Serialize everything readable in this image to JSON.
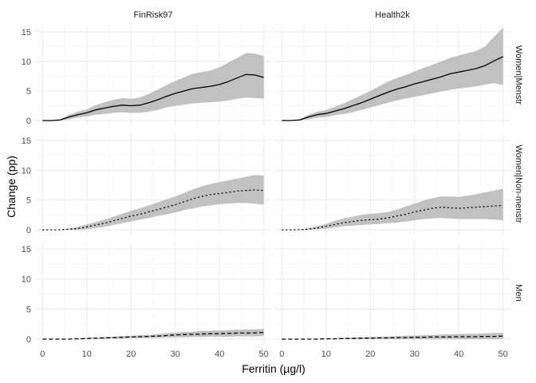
{
  "chart_data": {
    "type": "line",
    "xlabel": "Ferritin (µg/l)",
    "ylabel": "Change (pp)",
    "xlim": [
      -1.5,
      51.5
    ],
    "ylim": [
      -0.8,
      16.2
    ],
    "x_ticks": [
      0,
      10,
      20,
      30,
      40,
      50
    ],
    "x_tick_labels": [
      "0",
      "10",
      "20",
      "30",
      "40",
      "50"
    ],
    "y_ticks": [
      0,
      5,
      10,
      15
    ],
    "y_tick_labels": [
      "0",
      "5",
      "10",
      "15"
    ],
    "columns": [
      "FinRisk97",
      "Health2k"
    ],
    "rows": [
      "Women|Menstr",
      "Women|Non-menstr",
      "Men"
    ],
    "grid": true,
    "legend": "none",
    "band_color": "#bebebe",
    "line_color": "#000000",
    "x": [
      0,
      2,
      4,
      6,
      8,
      10,
      12,
      14,
      16,
      18,
      20,
      22,
      24,
      26,
      28,
      30,
      32,
      34,
      36,
      38,
      40,
      42,
      44,
      46,
      48,
      50
    ],
    "panels": [
      {
        "row": "Women|Menstr",
        "column": "FinRisk97",
        "line_style": "solid",
        "values": [
          0,
          0,
          0.1,
          0.6,
          1.0,
          1.3,
          1.8,
          2.1,
          2.4,
          2.6,
          2.5,
          2.6,
          3.0,
          3.5,
          4.1,
          4.6,
          5.0,
          5.4,
          5.6,
          5.8,
          6.1,
          6.6,
          7.2,
          7.8,
          7.7,
          7.3
        ],
        "lower": [
          0,
          0,
          0,
          0.2,
          0.5,
          0.7,
          1.0,
          1.1,
          1.3,
          1.4,
          1.3,
          1.3,
          1.5,
          1.8,
          2.2,
          2.5,
          2.7,
          2.9,
          3.0,
          3.1,
          3.2,
          3.4,
          3.7,
          3.9,
          3.8,
          3.7
        ],
        "upper": [
          0,
          0,
          0.2,
          1.0,
          1.5,
          1.9,
          2.6,
          3.1,
          3.5,
          3.8,
          3.7,
          3.9,
          4.5,
          5.2,
          6.0,
          6.7,
          7.3,
          7.9,
          8.2,
          8.5,
          9.0,
          9.8,
          10.6,
          11.4,
          11.3,
          10.9
        ]
      },
      {
        "row": "Women|Menstr",
        "column": "Health2k",
        "line_style": "solid",
        "values": [
          0,
          0,
          0.1,
          0.6,
          1.0,
          1.2,
          1.6,
          2.0,
          2.5,
          3.0,
          3.6,
          4.2,
          4.8,
          5.3,
          5.7,
          6.2,
          6.6,
          7.0,
          7.4,
          7.9,
          8.2,
          8.5,
          8.8,
          9.3,
          10.1,
          10.8
        ],
        "lower": [
          0,
          0,
          0,
          0.2,
          0.5,
          0.6,
          0.9,
          1.1,
          1.4,
          1.8,
          2.2,
          2.6,
          3.0,
          3.4,
          3.7,
          4.0,
          4.3,
          4.6,
          4.9,
          5.2,
          5.4,
          5.6,
          5.8,
          6.1,
          6.3,
          6.0
        ],
        "upper": [
          0,
          0,
          0.2,
          1.0,
          1.5,
          1.8,
          2.3,
          2.9,
          3.6,
          4.3,
          5.0,
          5.8,
          6.6,
          7.2,
          7.7,
          8.3,
          8.9,
          9.4,
          10.0,
          10.6,
          11.0,
          11.4,
          11.8,
          12.6,
          14.2,
          15.7
        ]
      },
      {
        "row": "Women|Non-menstr",
        "column": "FinRisk97",
        "line_style": "dotted",
        "values": [
          0,
          0,
          0,
          0.1,
          0.2,
          0.5,
          0.8,
          1.1,
          1.5,
          1.9,
          2.3,
          2.6,
          3.0,
          3.4,
          3.8,
          4.2,
          4.7,
          5.2,
          5.6,
          5.9,
          6.1,
          6.3,
          6.5,
          6.6,
          6.7,
          6.6
        ],
        "lower": [
          0,
          0,
          0,
          0,
          0,
          0.1,
          0.3,
          0.5,
          0.8,
          1.1,
          1.4,
          1.7,
          2.0,
          2.3,
          2.6,
          2.9,
          3.3,
          3.6,
          3.9,
          4.1,
          4.3,
          4.4,
          4.5,
          4.5,
          4.4,
          4.2
        ],
        "upper": [
          0,
          0,
          0,
          0.2,
          0.5,
          0.9,
          1.3,
          1.7,
          2.2,
          2.7,
          3.2,
          3.6,
          4.1,
          4.6,
          5.1,
          5.6,
          6.2,
          6.8,
          7.3,
          7.7,
          8.0,
          8.3,
          8.6,
          8.9,
          9.2,
          9.1
        ]
      },
      {
        "row": "Women|Non-menstr",
        "column": "Health2k",
        "line_style": "dotted",
        "values": [
          0,
          0,
          0,
          0.1,
          0.3,
          0.6,
          0.9,
          1.2,
          1.4,
          1.6,
          1.7,
          1.8,
          2.0,
          2.3,
          2.6,
          3.0,
          3.3,
          3.6,
          3.8,
          3.7,
          3.6,
          3.7,
          3.8,
          3.9,
          4.0,
          4.1
        ],
        "lower": [
          0,
          0,
          0,
          0,
          0.1,
          0.2,
          0.4,
          0.6,
          0.7,
          0.8,
          0.9,
          1.0,
          1.1,
          1.2,
          1.4,
          1.6,
          1.8,
          1.9,
          2.0,
          1.9,
          1.8,
          1.8,
          1.8,
          1.8,
          1.7,
          1.6
        ],
        "upper": [
          0,
          0,
          0,
          0.3,
          0.6,
          1.0,
          1.5,
          1.9,
          2.2,
          2.5,
          2.7,
          2.8,
          3.0,
          3.4,
          3.9,
          4.4,
          4.9,
          5.3,
          5.6,
          5.6,
          5.5,
          5.7,
          6.0,
          6.3,
          6.6,
          6.9
        ]
      },
      {
        "row": "Men",
        "column": "FinRisk97",
        "line_style": "dashed",
        "values": [
          0,
          0,
          0,
          0,
          0.05,
          0.1,
          0.15,
          0.2,
          0.25,
          0.3,
          0.35,
          0.4,
          0.45,
          0.5,
          0.6,
          0.7,
          0.75,
          0.8,
          0.85,
          0.9,
          0.9,
          0.95,
          1.0,
          1.0,
          1.05,
          1.1
        ],
        "lower": [
          0,
          0,
          0,
          0,
          0,
          0,
          0.05,
          0.05,
          0.1,
          0.1,
          0.15,
          0.15,
          0.2,
          0.2,
          0.25,
          0.3,
          0.3,
          0.35,
          0.35,
          0.4,
          0.4,
          0.4,
          0.45,
          0.45,
          0.45,
          0.5
        ],
        "upper": [
          0,
          0,
          0,
          0.05,
          0.1,
          0.2,
          0.25,
          0.35,
          0.4,
          0.5,
          0.55,
          0.65,
          0.7,
          0.8,
          0.95,
          1.1,
          1.2,
          1.25,
          1.35,
          1.4,
          1.45,
          1.5,
          1.55,
          1.6,
          1.65,
          1.7
        ]
      },
      {
        "row": "Men",
        "column": "Health2k",
        "line_style": "dashed",
        "values": [
          0,
          0,
          0,
          0,
          0,
          0.05,
          0.05,
          0.1,
          0.1,
          0.15,
          0.15,
          0.2,
          0.2,
          0.25,
          0.25,
          0.3,
          0.3,
          0.35,
          0.35,
          0.35,
          0.4,
          0.4,
          0.4,
          0.45,
          0.45,
          0.5
        ],
        "lower": [
          0,
          0,
          0,
          0,
          0,
          0,
          0,
          0,
          0,
          0,
          0,
          0,
          0,
          0,
          0,
          0,
          0,
          0,
          0,
          0,
          0,
          0,
          0,
          0,
          0,
          0
        ],
        "upper": [
          0,
          0,
          0,
          0,
          0.05,
          0.1,
          0.15,
          0.2,
          0.25,
          0.3,
          0.35,
          0.4,
          0.45,
          0.5,
          0.55,
          0.6,
          0.65,
          0.7,
          0.75,
          0.8,
          0.85,
          0.9,
          0.9,
          0.95,
          1.0,
          1.05
        ]
      }
    ]
  }
}
